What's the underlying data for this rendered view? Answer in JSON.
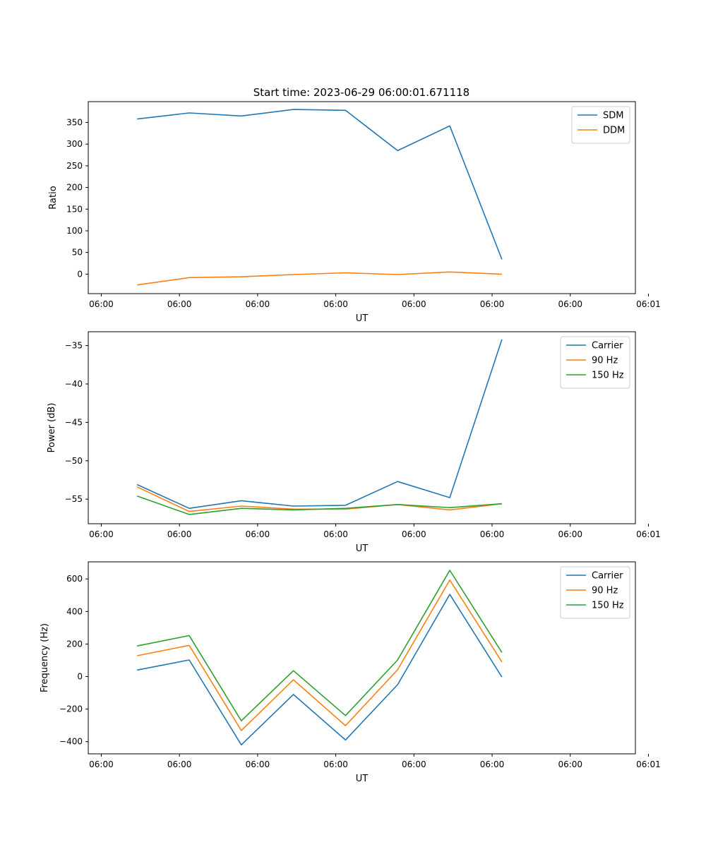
{
  "title": "Start time: 2023-06-29 06:00:01.671118",
  "chart_data": [
    {
      "type": "line",
      "xlabel": "UT",
      "ylabel": "Ratio",
      "xlim": [
        0.0,
        8.4
      ],
      "ylim": [
        -45,
        398
      ],
      "x_tick_values": [
        0.2,
        1.4,
        2.6,
        3.8,
        5.0,
        6.2,
        7.4,
        8.6
      ],
      "x_tick_labels": [
        "06:00",
        "06:00",
        "06:00",
        "06:00",
        "06:00",
        "06:00",
        "06:00",
        "06:01"
      ],
      "y_ticks": [
        0,
        50,
        100,
        150,
        200,
        250,
        300,
        350
      ],
      "legend": "top-right",
      "x": [
        0.75,
        1.55,
        2.35,
        3.15,
        3.95,
        4.75,
        5.55,
        6.35
      ],
      "series": [
        {
          "name": "SDM",
          "color": "#1f77b4",
          "values": [
            358,
            372,
            365,
            380,
            378,
            285,
            342,
            34
          ]
        },
        {
          "name": "DDM",
          "color": "#ff7f0e",
          "values": [
            -25,
            -8,
            -6,
            -1,
            3,
            -1,
            5,
            0
          ]
        }
      ]
    },
    {
      "type": "line",
      "xlabel": "UT",
      "ylabel": "Power (dB)",
      "xlim": [
        0.0,
        8.4
      ],
      "ylim": [
        -58.2,
        -33.2
      ],
      "x_tick_values": [
        0.2,
        1.4,
        2.6,
        3.8,
        5.0,
        6.2,
        7.4,
        8.6
      ],
      "x_tick_labels": [
        "06:00",
        "06:00",
        "06:00",
        "06:00",
        "06:00",
        "06:00",
        "06:00",
        "06:01"
      ],
      "y_ticks": [
        -55,
        -50,
        -45,
        -40,
        -35
      ],
      "legend": "top-right",
      "x": [
        0.75,
        1.55,
        2.35,
        3.15,
        3.95,
        4.75,
        5.55,
        6.35
      ],
      "series": [
        {
          "name": "Carrier",
          "color": "#1f77b4",
          "values": [
            -53.1,
            -56.2,
            -55.2,
            -55.9,
            -55.8,
            -52.7,
            -54.8,
            -34.2
          ]
        },
        {
          "name": "90 Hz",
          "color": "#ff7f0e",
          "values": [
            -53.4,
            -56.6,
            -55.9,
            -56.3,
            -56.3,
            -55.7,
            -56.4,
            -55.6
          ]
        },
        {
          "name": "150 Hz",
          "color": "#2ca02c",
          "values": [
            -54.6,
            -57.0,
            -56.2,
            -56.4,
            -56.2,
            -55.7,
            -56.1,
            -55.6
          ]
        }
      ]
    },
    {
      "type": "line",
      "xlabel": "UT",
      "ylabel": "Frequency (Hz)",
      "xlim": [
        0.0,
        8.4
      ],
      "ylim": [
        -475,
        705
      ],
      "x_tick_values": [
        0.2,
        1.4,
        2.6,
        3.8,
        5.0,
        6.2,
        7.4,
        8.6
      ],
      "x_tick_labels": [
        "06:00",
        "06:00",
        "06:00",
        "06:00",
        "06:00",
        "06:00",
        "06:00",
        "06:01"
      ],
      "y_ticks": [
        -400,
        -200,
        0,
        200,
        400,
        600
      ],
      "legend": "top-right",
      "x": [
        0.75,
        1.55,
        2.35,
        3.15,
        3.95,
        4.75,
        5.55,
        6.35
      ],
      "series": [
        {
          "name": "Carrier",
          "color": "#1f77b4",
          "values": [
            40,
            102,
            -420,
            -110,
            -390,
            -50,
            505,
            -3
          ]
        },
        {
          "name": "90 Hz",
          "color": "#ff7f0e",
          "values": [
            128,
            192,
            -332,
            -20,
            -302,
            42,
            593,
            90
          ]
        },
        {
          "name": "150 Hz",
          "color": "#2ca02c",
          "values": [
            188,
            252,
            -272,
            36,
            -240,
            102,
            653,
            148
          ]
        }
      ]
    }
  ]
}
